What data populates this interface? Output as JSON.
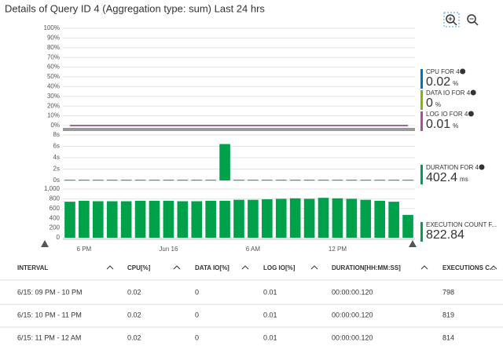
{
  "title": "Details of Query ID 4 (Aggregation type: sum) Last 24 hrs",
  "chart_data": [
    {
      "type": "line",
      "ylim": [
        0,
        100
      ],
      "grid": true,
      "yticks": [
        {
          "value": 0,
          "label": "0%"
        },
        {
          "value": 10,
          "label": "10%"
        },
        {
          "value": 20,
          "label": "20%"
        },
        {
          "value": 30,
          "label": "30%"
        },
        {
          "value": 40,
          "label": "40%"
        },
        {
          "value": 50,
          "label": "50%"
        },
        {
          "value": 60,
          "label": "60%"
        },
        {
          "value": 70,
          "label": "70%"
        },
        {
          "value": 80,
          "label": "80%"
        },
        {
          "value": 90,
          "label": "90%"
        },
        {
          "value": 100,
          "label": "100%"
        }
      ],
      "series": [
        {
          "name": "CPU FOR 4",
          "color": "#0072c6",
          "summary": 0.02,
          "summary_unit": "%",
          "values": [
            0.02,
            0.02,
            0.02,
            0.02,
            0.02,
            0.02,
            0.02,
            0.02,
            0.02,
            0.02,
            0.02,
            0.02,
            0.02,
            0.02,
            0.02,
            0.02,
            0.02,
            0.02,
            0.02,
            0.02,
            0.02,
            0.02,
            0.02,
            0.02,
            0.02
          ]
        },
        {
          "name": "DATA IO FOR 4",
          "color": "#7fba00",
          "summary": 0,
          "summary_unit": "%",
          "values": [
            0,
            0,
            0,
            0,
            0,
            0,
            0,
            0,
            0,
            0,
            0,
            0,
            0,
            0,
            0,
            0,
            0,
            0,
            0,
            0,
            0,
            0,
            0,
            0,
            0
          ]
        },
        {
          "name": "LOG IO FOR 4",
          "color": "#a4509b",
          "summary": 0.01,
          "summary_unit": "%",
          "values": [
            0.01,
            0.01,
            0.01,
            0.01,
            0.01,
            0.01,
            0.01,
            0.01,
            0.01,
            0.01,
            0.01,
            0.01,
            0.01,
            0.01,
            0.01,
            0.01,
            0.01,
            0.01,
            0.01,
            0.01,
            0.01,
            0.01,
            0.01,
            0.01,
            0.01
          ]
        }
      ]
    },
    {
      "type": "bar",
      "ylim": [
        0,
        8
      ],
      "grid": true,
      "yticks": [
        {
          "value": 0,
          "label": "0s"
        },
        {
          "value": 2,
          "label": "2s"
        },
        {
          "value": 4,
          "label": "4s"
        },
        {
          "value": 6,
          "label": "6s"
        },
        {
          "value": 8,
          "label": "8s"
        }
      ],
      "series": [
        {
          "name": "DURATION FOR 4",
          "color": "#00a14b",
          "summary": 402.4,
          "summary_unit": "ms",
          "values": [
            0.12,
            0.12,
            0.12,
            0.12,
            0.12,
            0.12,
            0.12,
            0.12,
            0.12,
            0.12,
            0.12,
            6.4,
            0.12,
            0.12,
            0.12,
            0.12,
            0.12,
            0.12,
            0.12,
            0.12,
            0.12,
            0.12,
            0.12,
            0.12,
            0.12
          ]
        }
      ]
    },
    {
      "type": "bar",
      "ylim": [
        0,
        1000
      ],
      "grid": true,
      "yticks": [
        0,
        200,
        400,
        600,
        800,
        {
          "value": 1000,
          "label": "1,000"
        }
      ],
      "categories": [
        null,
        "6 PM",
        null,
        null,
        null,
        null,
        null,
        "Jun 16",
        null,
        null,
        null,
        null,
        null,
        "6 AM",
        null,
        null,
        null,
        null,
        null,
        "12 PM",
        null,
        null,
        null,
        null,
        null
      ],
      "series": [
        {
          "name": "EXECUTION COUNT F...",
          "color": "#00a14b",
          "summary": 822.84,
          "values": [
            740,
            760,
            750,
            750,
            750,
            760,
            760,
            760,
            750,
            750,
            760,
            760,
            780,
            780,
            790,
            800,
            810,
            800,
            820,
            810,
            800,
            780,
            760,
            740,
            470
          ]
        }
      ]
    }
  ],
  "table": {
    "columns": [
      "INTERVAL",
      "CPU[%]",
      "DATA IO[%]",
      "LOG IO[%]",
      "DURATION[HH:MM:SS]",
      "EXECUTIONS C..."
    ],
    "rows": [
      [
        "6/15: 09 PM - 10 PM",
        0.02,
        0,
        0.01,
        "00:00:00.120",
        798
      ],
      [
        "6/15: 10 PM - 11 PM",
        0.02,
        0,
        0.01,
        "00:00:00.120",
        819
      ],
      [
        "6/15: 11 PM - 12 AM",
        0.02,
        0,
        0.01,
        "00:00:00.120",
        814
      ]
    ]
  }
}
